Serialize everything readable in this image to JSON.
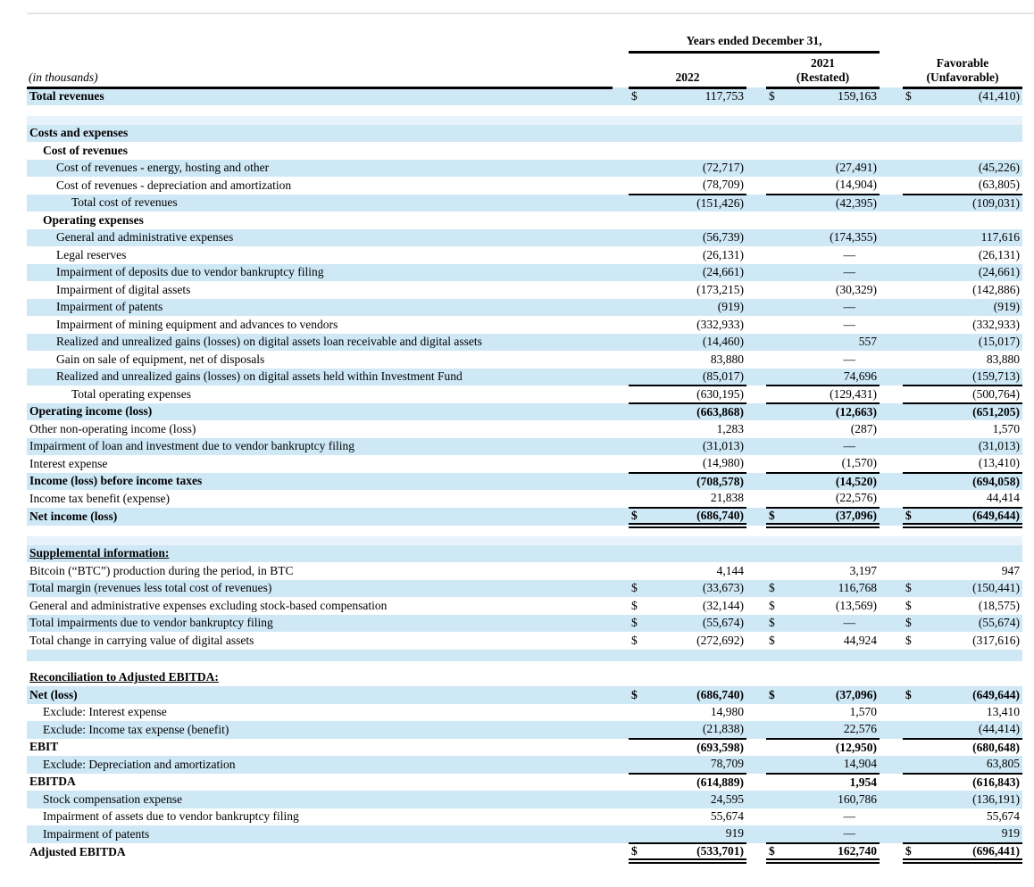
{
  "header": {
    "years_title": "Years ended December 31,",
    "note": "(in thousands)",
    "col_2022": "2022",
    "col_2021_line1": "2021",
    "col_2021_line2": "(Restated)",
    "col_fav_line1": "Favorable",
    "col_fav_line2": "(Unfavorable)"
  },
  "colors": {
    "row_shade": "#cfe8f6",
    "row_shade_faint": "#e7f2fa",
    "rule_line": "#000000",
    "top_edge": "#e4e4e4"
  },
  "table": {
    "rows": [
      {
        "label": "Total revenues",
        "indent": 0,
        "bold": true,
        "shade": "blue",
        "dollar": true,
        "values": [
          "117,753",
          "159,163",
          "(41,410)"
        ]
      },
      {
        "spacer": true,
        "shade": "white",
        "height": 12
      },
      {
        "spacer": true,
        "shade": "faint",
        "height": 10
      },
      {
        "label": "Costs and expenses",
        "indent": 0,
        "bold": true,
        "shade": "blue"
      },
      {
        "label": "Cost of revenues",
        "indent": 1,
        "bold": true,
        "shade": "white"
      },
      {
        "label": "Cost of revenues - energy, hosting and other",
        "indent": 2,
        "shade": "blue",
        "values": [
          "(72,717)",
          "(27,491)",
          "(45,226)"
        ]
      },
      {
        "label": "Cost of revenues - depreciation and amortization",
        "indent": 2,
        "shade": "white",
        "values": [
          "(78,709)",
          "(14,904)",
          "(63,805)"
        ],
        "border": "single"
      },
      {
        "label": "Total cost of revenues",
        "indent": 3,
        "shade": "blue",
        "values": [
          "(151,426)",
          "(42,395)",
          "(109,031)"
        ]
      },
      {
        "label": "Operating expenses",
        "indent": 1,
        "bold": true,
        "shade": "white"
      },
      {
        "label": "General and administrative expenses",
        "indent": 2,
        "shade": "blue",
        "values": [
          "(56,739)",
          "(174,355)",
          "117,616"
        ]
      },
      {
        "label": "Legal reserves",
        "indent": 2,
        "shade": "white",
        "values": [
          "(26,131)",
          "—",
          "(26,131)"
        ]
      },
      {
        "label": "Impairment of deposits due to vendor bankruptcy filing",
        "indent": 2,
        "shade": "blue",
        "values": [
          "(24,661)",
          "—",
          "(24,661)"
        ]
      },
      {
        "label": "Impairment of digital assets",
        "indent": 2,
        "shade": "white",
        "values": [
          "(173,215)",
          "(30,329)",
          "(142,886)"
        ]
      },
      {
        "label": "Impairment of patents",
        "indent": 2,
        "shade": "blue",
        "values": [
          "(919)",
          "—",
          "(919)"
        ]
      },
      {
        "label": "Impairment of mining equipment and advances to vendors",
        "indent": 2,
        "shade": "white",
        "values": [
          "(332,933)",
          "—",
          "(332,933)"
        ]
      },
      {
        "label": "Realized and unrealized gains (losses) on digital assets loan receivable and digital assets",
        "indent": 2,
        "shade": "blue",
        "values": [
          "(14,460)",
          "557",
          "(15,017)"
        ]
      },
      {
        "label": "Gain on sale of equipment, net of disposals",
        "indent": 2,
        "shade": "white",
        "values": [
          "83,880",
          "—",
          "83,880"
        ]
      },
      {
        "label": "Realized and unrealized gains (losses) on digital assets held within Investment Fund",
        "indent": 2,
        "shade": "blue",
        "values": [
          "(85,017)",
          "74,696",
          "(159,713)"
        ],
        "border": "single"
      },
      {
        "label": "Total operating expenses",
        "indent": 3,
        "shade": "white",
        "values": [
          "(630,195)",
          "(129,431)",
          "(500,764)"
        ],
        "border": "single"
      },
      {
        "label": "Operating income (loss)",
        "indent": 0,
        "bold": true,
        "vbold": true,
        "shade": "blue",
        "values": [
          "(663,868)",
          "(12,663)",
          "(651,205)"
        ]
      },
      {
        "label": "Other non-operating income (loss)",
        "indent": 0,
        "shade": "white",
        "values": [
          "1,283",
          "(287)",
          "1,570"
        ]
      },
      {
        "label": "Impairment of loan and investment due to vendor bankruptcy filing",
        "indent": 0,
        "shade": "blue",
        "values": [
          "(31,013)",
          "—",
          "(31,013)"
        ]
      },
      {
        "label": "Interest expense",
        "indent": 0,
        "shade": "white",
        "values": [
          "(14,980)",
          "(1,570)",
          "(13,410)"
        ],
        "border": "single"
      },
      {
        "label": "Income (loss) before income taxes",
        "indent": 0,
        "bold": true,
        "vbold": true,
        "shade": "blue",
        "values": [
          "(708,578)",
          "(14,520)",
          "(694,058)"
        ]
      },
      {
        "label": "Income tax benefit (expense)",
        "indent": 0,
        "shade": "white",
        "values": [
          "21,838",
          "(22,576)",
          "44,414"
        ],
        "border": "single"
      },
      {
        "label": "Net income (loss)",
        "indent": 0,
        "bold": true,
        "vbold": true,
        "shade": "blue",
        "dollar": true,
        "values": [
          "(686,740)",
          "(37,096)",
          "(649,644)"
        ],
        "border": "double"
      },
      {
        "spacer": true,
        "shade": "white",
        "height": 12
      },
      {
        "spacer": true,
        "shade": "faint",
        "height": 10
      },
      {
        "label": "Supplemental information:",
        "indent": 0,
        "bold": true,
        "underline": true,
        "shade": "blue"
      },
      {
        "label": "Bitcoin (“BTC”) production during the period, in BTC",
        "indent": 0,
        "shade": "white",
        "values": [
          "4,144",
          "3,197",
          "947"
        ]
      },
      {
        "label": "Total margin (revenues less total cost of revenues)",
        "indent": 0,
        "shade": "blue",
        "dollar": true,
        "values": [
          "(33,673)",
          "116,768",
          "(150,441)"
        ]
      },
      {
        "label": "General and administrative expenses excluding stock-based compensation",
        "indent": 0,
        "shade": "white",
        "dollar": true,
        "values": [
          "(32,144)",
          "(13,569)",
          "(18,575)"
        ]
      },
      {
        "label": "Total impairments due to vendor bankruptcy filing",
        "indent": 0,
        "shade": "blue",
        "dollar": true,
        "values": [
          "(55,674)",
          "—",
          "(55,674)"
        ]
      },
      {
        "label": "Total change in carrying value of digital assets",
        "indent": 0,
        "shade": "white",
        "dollar": true,
        "values": [
          "(272,692)",
          "44,924",
          "(317,616)"
        ]
      },
      {
        "spacer": true,
        "shade": "blue",
        "height": 13
      },
      {
        "spacer": true,
        "shade": "white",
        "height": 9
      },
      {
        "label": "Reconciliation to Adjusted EBITDA:",
        "indent": 0,
        "bold": true,
        "underline": true,
        "shade": "white"
      },
      {
        "label": "Net (loss)",
        "indent": 0,
        "bold": true,
        "vbold": true,
        "shade": "blue",
        "dollar": true,
        "values": [
          "(686,740)",
          "(37,096)",
          "(649,644)"
        ]
      },
      {
        "label": "Exclude: Interest expense",
        "indent": 1,
        "shade": "white",
        "values": [
          "14,980",
          "1,570",
          "13,410"
        ]
      },
      {
        "label": "Exclude: Income tax expense (benefit)",
        "indent": 1,
        "shade": "blue",
        "values": [
          "(21,838)",
          "22,576",
          "(44,414)"
        ],
        "border": "single"
      },
      {
        "label": "EBIT",
        "indent": 0,
        "bold": true,
        "vbold": true,
        "shade": "white",
        "values": [
          "(693,598)",
          "(12,950)",
          "(680,648)"
        ]
      },
      {
        "label": "Exclude: Depreciation and amortization",
        "indent": 1,
        "shade": "blue",
        "values": [
          "78,709",
          "14,904",
          "63,805"
        ],
        "border": "single"
      },
      {
        "label": "EBITDA",
        "indent": 0,
        "bold": true,
        "vbold": true,
        "shade": "white",
        "values": [
          "(614,889)",
          "1,954",
          "(616,843)"
        ]
      },
      {
        "label": "Stock compensation expense",
        "indent": 1,
        "shade": "blue",
        "values": [
          "24,595",
          "160,786",
          "(136,191)"
        ]
      },
      {
        "label": "Impairment of assets due to vendor bankruptcy filing",
        "indent": 1,
        "shade": "white",
        "values": [
          "55,674",
          "—",
          "55,674"
        ]
      },
      {
        "label": "Impairment of patents",
        "indent": 1,
        "shade": "blue",
        "values": [
          "919",
          "—",
          "919"
        ],
        "border": "single"
      },
      {
        "label": "Adjusted EBITDA",
        "indent": 0,
        "bold": true,
        "vbold": true,
        "shade": "white",
        "dollar": true,
        "values": [
          "(533,701)",
          "162,740",
          "(696,441)"
        ],
        "border": "double"
      }
    ]
  }
}
